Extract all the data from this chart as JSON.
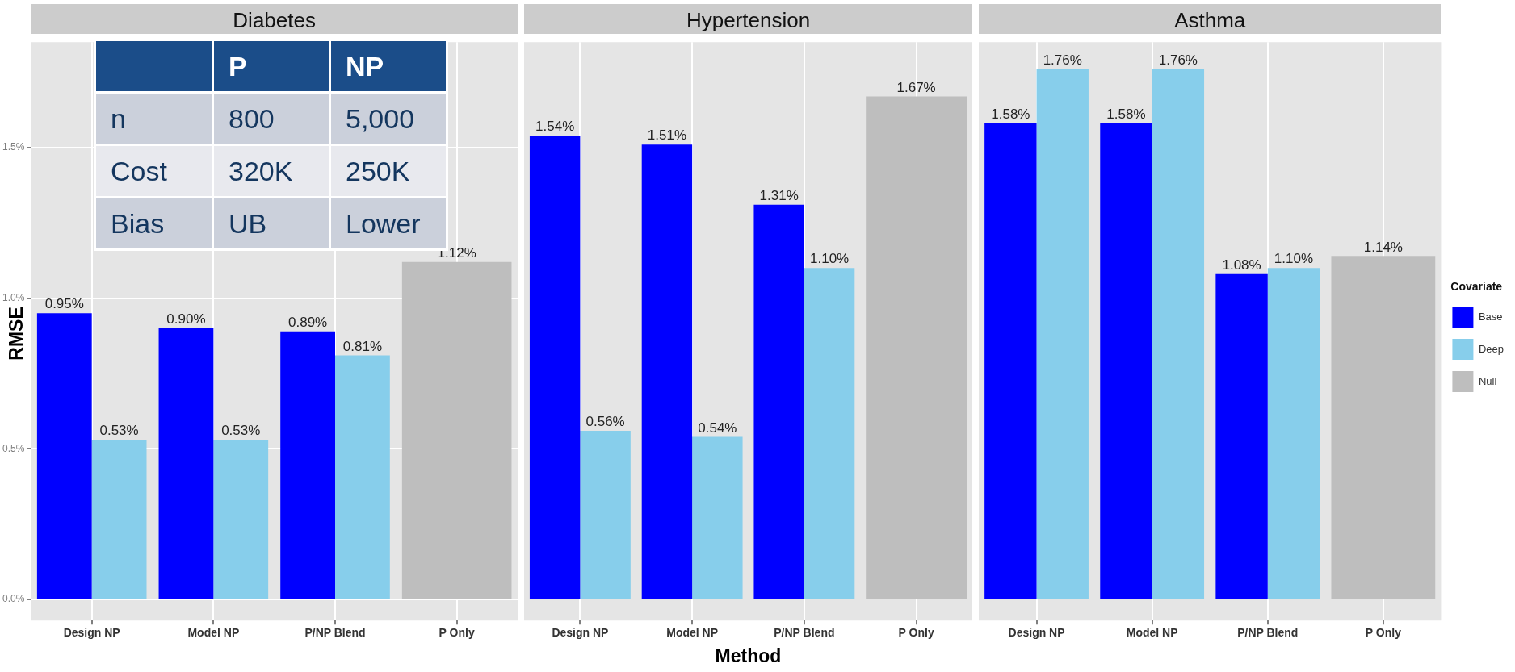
{
  "chart_data": [
    {
      "type": "bar",
      "title": "Diabetes",
      "ylabel": "RMSE",
      "categories": [
        "Design NP",
        "Model NP",
        "P/NP Blend",
        "P Only"
      ],
      "series": [
        {
          "color": "#0000ff",
          "values": [
            0.95,
            0.9,
            0.89,
            null
          ],
          "value_labels": [
            "0.95%",
            "0.90%",
            "0.89%",
            null
          ]
        },
        {
          "color": "#87ceeb",
          "values": [
            0.53,
            0.53,
            0.81,
            null
          ],
          "value_labels": [
            "0.53%",
            "0.53%",
            "0.81%",
            null
          ]
        },
        {
          "color": "#bebebe",
          "values": [
            null,
            null,
            null,
            1.12
          ],
          "value_labels": [
            null,
            null,
            null,
            "1.12%"
          ]
        }
      ],
      "ylim": [
        -0.07,
        1.85
      ],
      "yticks": [
        {
          "value": 0,
          "label": "0.0%"
        },
        {
          "value": 0.5,
          "label": "0.5%"
        },
        {
          "value": 1,
          "label": "1.0%"
        },
        {
          "value": 1.5,
          "label": "1.5%"
        }
      ],
      "grid": true
    },
    {
      "type": "bar",
      "title": "Hypertension",
      "xlabel": "Method",
      "categories": [
        "Design NP",
        "Model NP",
        "P/NP Blend",
        "P Only"
      ],
      "series": [
        {
          "color": "#0000ff",
          "values": [
            1.54,
            1.51,
            1.31,
            null
          ],
          "value_labels": [
            "1.54%",
            "1.51%",
            "1.31%",
            null
          ]
        },
        {
          "color": "#87ceeb",
          "values": [
            0.56,
            0.54,
            1.1,
            null
          ],
          "value_labels": [
            "0.56%",
            "0.54%",
            "1.10%",
            null
          ]
        },
        {
          "color": "#bebebe",
          "values": [
            null,
            null,
            null,
            1.67
          ],
          "value_labels": [
            null,
            null,
            null,
            "1.67%"
          ]
        }
      ],
      "ylim": [
        -0.07,
        1.85
      ],
      "yticks": [
        {
          "value": 0,
          "label": null
        },
        {
          "value": 0.5,
          "label": null
        },
        {
          "value": 1,
          "label": null
        },
        {
          "value": 1.5,
          "label": null
        }
      ],
      "grid": true,
      "tick_labels": "x"
    },
    {
      "type": "bar",
      "title": "Asthma",
      "legend": "right",
      "legend_title": "Covariate",
      "categories": [
        "Design NP",
        "Model NP",
        "P/NP Blend",
        "P Only"
      ],
      "series": [
        {
          "name": "Base",
          "color": "#0000ff",
          "values": [
            1.58,
            1.58,
            1.08,
            null
          ],
          "value_labels": [
            "1.58%",
            "1.58%",
            "1.08%",
            null
          ]
        },
        {
          "name": "Deep",
          "color": "#87ceeb",
          "values": [
            1.76,
            1.76,
            1.1,
            null
          ],
          "value_labels": [
            "1.76%",
            "1.76%",
            "1.10%",
            null
          ]
        },
        {
          "name": "Null",
          "color": "#bebebe",
          "values": [
            null,
            null,
            null,
            1.14
          ],
          "value_labels": [
            null,
            null,
            null,
            "1.14%"
          ]
        }
      ],
      "ylim": [
        -0.07,
        1.85
      ],
      "yticks": [
        {
          "value": 0,
          "label": null
        },
        {
          "value": 0.5,
          "label": null
        },
        {
          "value": 1,
          "label": null
        },
        {
          "value": 1.5,
          "label": null
        }
      ],
      "grid": true,
      "tick_labels": "x"
    },
    {
      "type": "other",
      "categories": [
        null,
        "P",
        "NP"
      ],
      "y_categories": [
        "n",
        "Cost",
        "Bias"
      ],
      "cell_labels": [
        [
          "800",
          "5,000"
        ],
        [
          "320K",
          "250K"
        ],
        [
          "UB",
          "Lower"
        ]
      ]
    }
  ]
}
